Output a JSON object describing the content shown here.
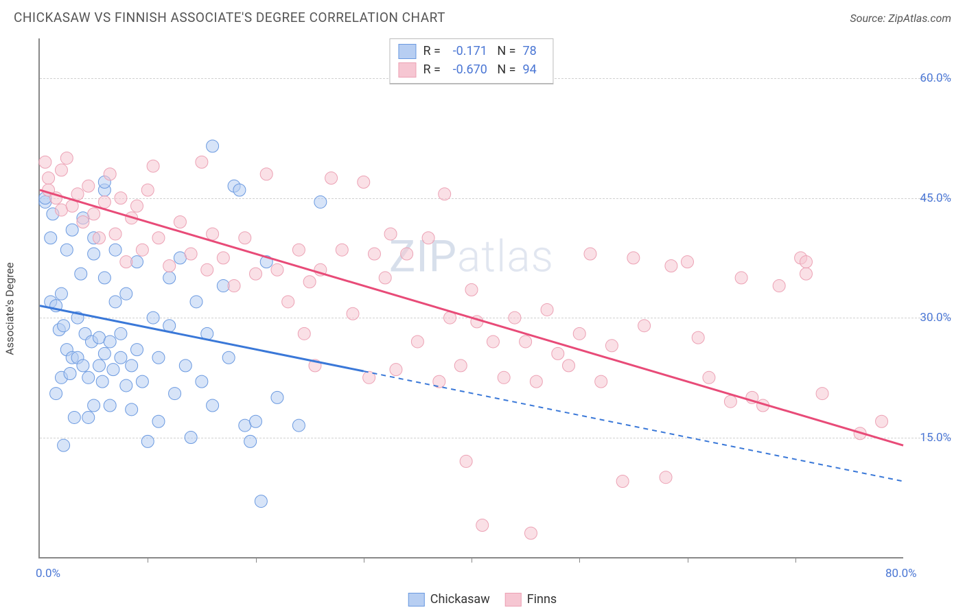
{
  "header": {
    "title": "CHICKASAW VS FINNISH ASSOCIATE'S DEGREE CORRELATION CHART",
    "source_prefix": "Source: ",
    "source": "ZipAtlas.com"
  },
  "watermark": {
    "a": "ZIP",
    "b": "atlas"
  },
  "chart": {
    "type": "scatter",
    "ylabel": "Associate's Degree",
    "xlim": [
      0,
      80
    ],
    "ylim": [
      0,
      65
    ],
    "xtick_positions": [
      10,
      20,
      30,
      40,
      50,
      60,
      70
    ],
    "xlabel_min": "0.0%",
    "xlabel_max": "80.0%",
    "ytick_positions": [
      15,
      30,
      45,
      60
    ],
    "ytick_labels": [
      "15.0%",
      "30.0%",
      "45.0%",
      "60.0%"
    ],
    "background_color": "#ffffff",
    "grid_color": "#d0d0d0",
    "axis_color": "#888888",
    "label_color": "#4a76d4",
    "marker_radius": 9,
    "marker_opacity": 0.55,
    "series": [
      {
        "name": "Chickasaw",
        "color_solid": "#3a78d8",
        "fill": "#b7cef2",
        "stroke": "#6a99e0",
        "R": "-0.171",
        "N": "78",
        "trend": {
          "x1": 0,
          "y1": 31.5,
          "x2": 30,
          "y2": 23.3,
          "ext_x2": 80,
          "ext_y2": 9.5
        },
        "points": [
          [
            0.5,
            44.5
          ],
          [
            0.5,
            45.0
          ],
          [
            1.0,
            32.0
          ],
          [
            1.0,
            40.0
          ],
          [
            1.2,
            43.0
          ],
          [
            1.5,
            20.5
          ],
          [
            1.5,
            31.5
          ],
          [
            1.8,
            28.5
          ],
          [
            2.0,
            22.5
          ],
          [
            2.0,
            33.0
          ],
          [
            2.2,
            14.0
          ],
          [
            2.2,
            29.0
          ],
          [
            2.5,
            26.0
          ],
          [
            2.5,
            38.5
          ],
          [
            2.8,
            23.0
          ],
          [
            3.0,
            25.0
          ],
          [
            3.0,
            41.0
          ],
          [
            3.2,
            17.5
          ],
          [
            3.5,
            25.0
          ],
          [
            3.5,
            30.0
          ],
          [
            3.8,
            35.5
          ],
          [
            4.0,
            42.5
          ],
          [
            4.0,
            24.0
          ],
          [
            4.2,
            28.0
          ],
          [
            4.5,
            17.5
          ],
          [
            4.5,
            22.5
          ],
          [
            4.8,
            27.0
          ],
          [
            5.0,
            19.0
          ],
          [
            5.0,
            40.0
          ],
          [
            5.0,
            38.0
          ],
          [
            5.5,
            24.0
          ],
          [
            5.5,
            27.5
          ],
          [
            5.8,
            22.0
          ],
          [
            6.0,
            25.5
          ],
          [
            6.0,
            35.0
          ],
          [
            6.0,
            46.0
          ],
          [
            6.0,
            47.0
          ],
          [
            6.5,
            19.0
          ],
          [
            6.5,
            27.0
          ],
          [
            6.8,
            23.5
          ],
          [
            7.0,
            32.0
          ],
          [
            7.0,
            38.5
          ],
          [
            7.5,
            25.0
          ],
          [
            7.5,
            28.0
          ],
          [
            8.0,
            21.5
          ],
          [
            8.0,
            33.0
          ],
          [
            8.5,
            18.5
          ],
          [
            8.5,
            24.0
          ],
          [
            9.0,
            26.0
          ],
          [
            9.0,
            37.0
          ],
          [
            9.5,
            22.0
          ],
          [
            10.0,
            14.5
          ],
          [
            10.5,
            30.0
          ],
          [
            11.0,
            25.0
          ],
          [
            11.0,
            17.0
          ],
          [
            12.0,
            35.0
          ],
          [
            12.0,
            29.0
          ],
          [
            12.5,
            20.5
          ],
          [
            13.0,
            37.5
          ],
          [
            13.5,
            24.0
          ],
          [
            14.0,
            15.0
          ],
          [
            14.5,
            32.0
          ],
          [
            15.0,
            22.0
          ],
          [
            15.5,
            28.0
          ],
          [
            16.0,
            51.5
          ],
          [
            16.0,
            19.0
          ],
          [
            17.0,
            34.0
          ],
          [
            17.5,
            25.0
          ],
          [
            18.0,
            46.5
          ],
          [
            18.5,
            46.0
          ],
          [
            19.0,
            16.5
          ],
          [
            19.5,
            14.5
          ],
          [
            20.0,
            17.0
          ],
          [
            20.5,
            7.0
          ],
          [
            21.0,
            37.0
          ],
          [
            22.0,
            20.0
          ],
          [
            24.0,
            16.5
          ],
          [
            26.0,
            44.5
          ]
        ]
      },
      {
        "name": "Finns",
        "color_solid": "#e84b78",
        "fill": "#f6c6d2",
        "stroke": "#eca1b4",
        "R": "-0.670",
        "N": "94",
        "trend": {
          "x1": 0,
          "y1": 46.0,
          "x2": 80,
          "y2": 14.0
        },
        "points": [
          [
            0.5,
            49.5
          ],
          [
            0.8,
            47.5
          ],
          [
            0.8,
            46.0
          ],
          [
            1.5,
            45.0
          ],
          [
            2.0,
            48.5
          ],
          [
            2.0,
            43.5
          ],
          [
            2.5,
            50.0
          ],
          [
            3.0,
            44.0
          ],
          [
            3.5,
            45.5
          ],
          [
            4.0,
            42.0
          ],
          [
            4.5,
            46.5
          ],
          [
            5.0,
            43.0
          ],
          [
            5.5,
            40.0
          ],
          [
            6.0,
            44.5
          ],
          [
            6.5,
            48.0
          ],
          [
            7.0,
            40.5
          ],
          [
            7.5,
            45.0
          ],
          [
            8.0,
            37.0
          ],
          [
            8.5,
            42.5
          ],
          [
            9.0,
            44.0
          ],
          [
            9.5,
            38.5
          ],
          [
            10.0,
            46.0
          ],
          [
            10.5,
            49.0
          ],
          [
            11.0,
            40.0
          ],
          [
            12.0,
            36.5
          ],
          [
            13.0,
            42.0
          ],
          [
            14.0,
            38.0
          ],
          [
            15.0,
            49.5
          ],
          [
            15.5,
            36.0
          ],
          [
            16.0,
            40.5
          ],
          [
            17.0,
            37.5
          ],
          [
            18.0,
            34.0
          ],
          [
            19.0,
            40.0
          ],
          [
            20.0,
            35.5
          ],
          [
            21.0,
            48.0
          ],
          [
            22.0,
            36.0
          ],
          [
            23.0,
            32.0
          ],
          [
            24.0,
            38.5
          ],
          [
            24.5,
            28.0
          ],
          [
            25.0,
            34.5
          ],
          [
            25.5,
            24.0
          ],
          [
            26.0,
            36.0
          ],
          [
            27.0,
            47.5
          ],
          [
            28.0,
            38.5
          ],
          [
            29.0,
            30.5
          ],
          [
            30.0,
            47.0
          ],
          [
            30.5,
            22.5
          ],
          [
            31.0,
            38.0
          ],
          [
            32.0,
            35.0
          ],
          [
            32.5,
            40.5
          ],
          [
            33.0,
            23.5
          ],
          [
            34.0,
            38.0
          ],
          [
            35.0,
            27.0
          ],
          [
            36.0,
            40.0
          ],
          [
            37.0,
            22.0
          ],
          [
            37.5,
            45.5
          ],
          [
            38.0,
            30.0
          ],
          [
            39.0,
            24.0
          ],
          [
            39.5,
            12.0
          ],
          [
            40.0,
            33.5
          ],
          [
            40.5,
            29.5
          ],
          [
            41.0,
            4.0
          ],
          [
            42.0,
            27.0
          ],
          [
            43.0,
            22.5
          ],
          [
            44.0,
            30.0
          ],
          [
            45.0,
            27.0
          ],
          [
            45.5,
            3.0
          ],
          [
            46.0,
            22.0
          ],
          [
            47.0,
            31.0
          ],
          [
            48.0,
            25.5
          ],
          [
            49.0,
            24.0
          ],
          [
            50.0,
            28.0
          ],
          [
            51.0,
            38.0
          ],
          [
            52.0,
            22.0
          ],
          [
            53.0,
            26.5
          ],
          [
            55.0,
            37.5
          ],
          [
            56.0,
            29.0
          ],
          [
            58.0,
            10.0
          ],
          [
            58.5,
            36.5
          ],
          [
            60.0,
            37.0
          ],
          [
            61.0,
            27.5
          ],
          [
            62.0,
            22.5
          ],
          [
            64.0,
            19.5
          ],
          [
            65.0,
            35.0
          ],
          [
            66.0,
            20.0
          ],
          [
            67.0,
            19.0
          ],
          [
            68.5,
            34.0
          ],
          [
            70.5,
            37.5
          ],
          [
            71.0,
            35.5
          ],
          [
            71.0,
            37.0
          ],
          [
            72.5,
            20.5
          ],
          [
            76.0,
            15.5
          ],
          [
            78.0,
            17.0
          ],
          [
            54.0,
            9.5
          ]
        ]
      }
    ]
  },
  "legend": {
    "items": [
      {
        "label": "Chickasaw",
        "fill": "#b7cef2",
        "stroke": "#6a99e0"
      },
      {
        "label": "Finns",
        "fill": "#f6c6d2",
        "stroke": "#eca1b4"
      }
    ]
  }
}
